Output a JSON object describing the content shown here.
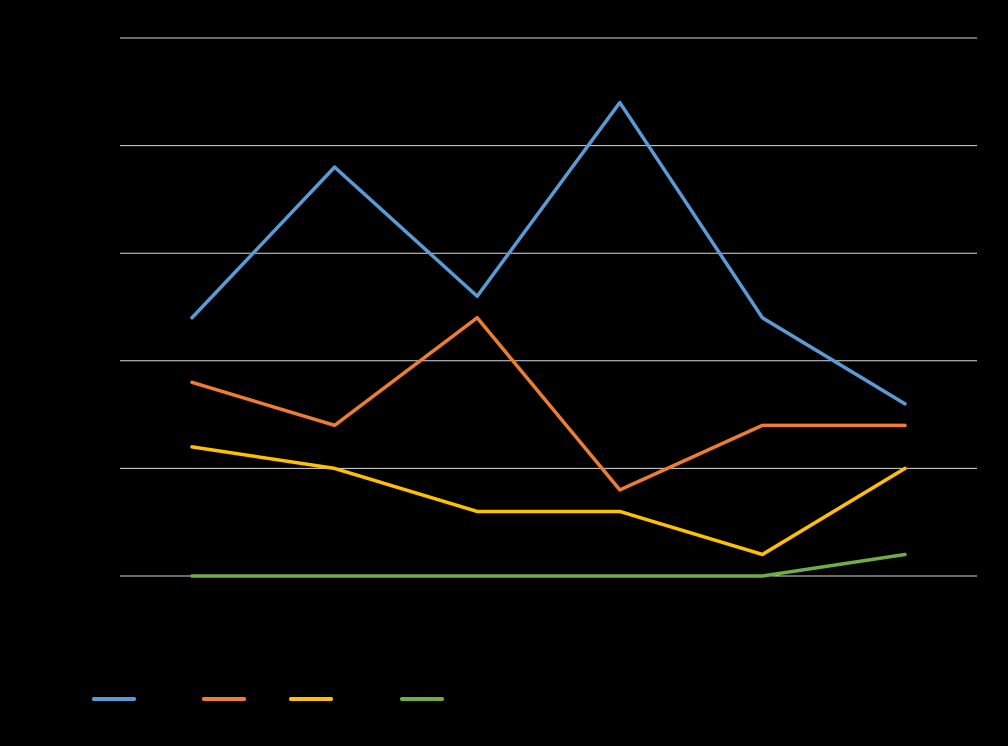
{
  "chart_data": {
    "type": "line",
    "background": "#000000",
    "grid": true,
    "gridColor": "#d9d9d9",
    "ylim": [
      0,
      50
    ],
    "yticks": [
      0,
      10,
      20,
      30,
      40,
      50
    ],
    "x": [
      1,
      2,
      3,
      4,
      5,
      6
    ],
    "legend_position": "bottom-left",
    "series": [
      {
        "color": "#5b9bd5",
        "values": [
          24,
          38,
          26,
          44,
          24,
          16
        ]
      },
      {
        "color": "#ed7d31",
        "values": [
          18,
          14,
          24,
          8,
          14,
          14
        ]
      },
      {
        "color": "#ffc000",
        "values": [
          12,
          10,
          6,
          6,
          2,
          10
        ]
      },
      {
        "color": "#70ad47",
        "values": [
          0,
          0,
          0,
          0,
          0,
          2
        ]
      }
    ]
  }
}
